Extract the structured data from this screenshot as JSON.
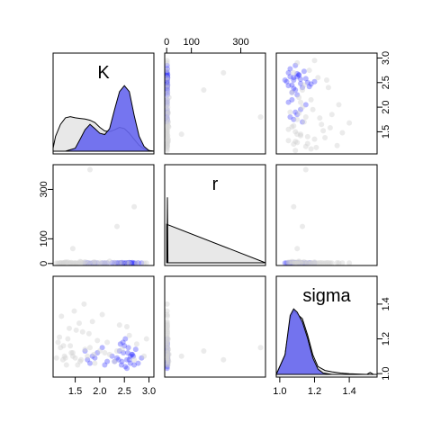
{
  "chart_data": {
    "type": "scatter",
    "title": "",
    "variables": [
      "K",
      "r",
      "sigma"
    ],
    "diagonal_labels": {
      "K": "K",
      "r": "r",
      "sigma": "sigma"
    },
    "ranges": {
      "K": [
        1.05,
        3.1
      ],
      "r": [
        -8,
        400
      ],
      "sigma": [
        0.98,
        1.56
      ]
    },
    "ticks": {
      "K": {
        "values": [
          1.5,
          2.0,
          2.5,
          3.0
        ],
        "labels": [
          "1.5",
          "2.0",
          "2.5",
          "3.0"
        ]
      },
      "r": {
        "values": [
          0,
          100,
          300
        ],
        "labels": [
          "0",
          "100",
          "300"
        ]
      },
      "sigma": {
        "values": [
          1.0,
          1.2,
          1.4
        ],
        "labels": [
          "1.0",
          "1.2",
          "1.4"
        ]
      }
    },
    "colors": {
      "group_prior": "#d3d3d3",
      "group_posterior": "#3333ff",
      "density_fill_prior": "#e8e8e8",
      "density_fill_posterior": "#6666ee"
    },
    "groups": [
      {
        "color": "#d3d3d3",
        "K_density": {
          "x": [
            1.05,
            1.1,
            1.2,
            1.3,
            1.4,
            1.5,
            1.6,
            1.7,
            1.8,
            1.9,
            2.0,
            2.1,
            2.2,
            2.3,
            2.4,
            2.5,
            2.6,
            2.7,
            2.8,
            2.9,
            3.0,
            3.1
          ],
          "y": [
            0.05,
            0.25,
            0.45,
            0.56,
            0.58,
            0.56,
            0.55,
            0.54,
            0.52,
            0.48,
            0.4,
            0.34,
            0.33,
            0.36,
            0.4,
            0.38,
            0.3,
            0.2,
            0.1,
            0.04,
            0.01,
            0.0
          ]
        },
        "r_density": {
          "x": [
            0,
            400
          ],
          "y": [
            1.0,
            0.0
          ]
        },
        "sigma_density": {
          "x": [
            0.98,
            1.03,
            1.06,
            1.08,
            1.1,
            1.13,
            1.16,
            1.19,
            1.22,
            1.26,
            1.3,
            1.35,
            1.4,
            1.45,
            1.5,
            1.52,
            1.54,
            1.56
          ],
          "y": [
            0.0,
            0.3,
            0.85,
            0.97,
            0.92,
            0.85,
            0.6,
            0.3,
            0.12,
            0.06,
            0.04,
            0.02,
            0.01,
            0.005,
            0.0,
            0.03,
            0.0,
            0.0
          ]
        }
      },
      {
        "color": "#3333ff",
        "K_density": {
          "x": [
            1.05,
            1.3,
            1.5,
            1.6,
            1.7,
            1.8,
            1.9,
            2.0,
            2.1,
            2.2,
            2.3,
            2.4,
            2.5,
            2.6,
            2.7,
            2.8,
            2.9,
            3.0,
            3.1
          ],
          "y": [
            0.0,
            0.0,
            0.05,
            0.2,
            0.36,
            0.45,
            0.38,
            0.3,
            0.28,
            0.38,
            0.7,
            1.0,
            1.1,
            1.0,
            0.6,
            0.25,
            0.08,
            0.01,
            0.0
          ]
        },
        "r_density": {
          "x": [
            0,
            1,
            3,
            5,
            8
          ],
          "y": [
            0.0,
            0.0,
            1.7,
            0.0,
            0.0
          ]
        },
        "sigma_density": {
          "x": [
            0.98,
            1.03,
            1.06,
            1.08,
            1.1,
            1.13,
            1.16,
            1.19,
            1.22,
            1.25,
            1.3,
            1.56
          ],
          "y": [
            0.0,
            0.3,
            0.9,
            1.0,
            0.95,
            0.8,
            0.55,
            0.25,
            0.08,
            0.02,
            0.0,
            0.0
          ]
        }
      }
    ],
    "samples": [
      {
        "group": 1,
        "K": 2.55,
        "r": 2,
        "sigma": 1.08
      },
      {
        "group": 1,
        "K": 2.62,
        "r": 3,
        "sigma": 1.1
      },
      {
        "group": 1,
        "K": 2.48,
        "r": 1,
        "sigma": 1.12
      },
      {
        "group": 1,
        "K": 2.7,
        "r": 2,
        "sigma": 1.05
      },
      {
        "group": 1,
        "K": 2.45,
        "r": 4,
        "sigma": 1.07
      },
      {
        "group": 1,
        "K": 2.58,
        "r": 2,
        "sigma": 1.15
      },
      {
        "group": 1,
        "K": 2.35,
        "r": 3,
        "sigma": 1.09
      },
      {
        "group": 1,
        "K": 2.65,
        "r": 1,
        "sigma": 1.11
      },
      {
        "group": 1,
        "K": 2.52,
        "r": 2,
        "sigma": 1.04
      },
      {
        "group": 1,
        "K": 2.78,
        "r": 3,
        "sigma": 1.06
      },
      {
        "group": 1,
        "K": 2.4,
        "r": 2,
        "sigma": 1.13
      },
      {
        "group": 1,
        "K": 2.6,
        "r": 4,
        "sigma": 1.08
      },
      {
        "group": 1,
        "K": 2.5,
        "r": 1,
        "sigma": 1.16
      },
      {
        "group": 1,
        "K": 2.68,
        "r": 2,
        "sigma": 1.1
      },
      {
        "group": 1,
        "K": 2.3,
        "r": 3,
        "sigma": 1.07
      },
      {
        "group": 1,
        "K": 2.85,
        "r": 2,
        "sigma": 1.09
      },
      {
        "group": 1,
        "K": 2.44,
        "r": 2,
        "sigma": 1.05
      },
      {
        "group": 1,
        "K": 2.57,
        "r": 3,
        "sigma": 1.12
      },
      {
        "group": 1,
        "K": 2.73,
        "r": 1,
        "sigma": 1.14
      },
      {
        "group": 1,
        "K": 2.38,
        "r": 2,
        "sigma": 1.08
      },
      {
        "group": 1,
        "K": 2.62,
        "r": 3,
        "sigma": 1.06
      },
      {
        "group": 1,
        "K": 2.47,
        "r": 2,
        "sigma": 1.18
      },
      {
        "group": 1,
        "K": 2.55,
        "r": 2,
        "sigma": 1.03
      },
      {
        "group": 1,
        "K": 2.66,
        "r": 4,
        "sigma": 1.11
      },
      {
        "group": 1,
        "K": 1.85,
        "r": 2,
        "sigma": 1.1
      },
      {
        "group": 1,
        "K": 1.75,
        "r": 3,
        "sigma": 1.08
      },
      {
        "group": 1,
        "K": 1.95,
        "r": 2,
        "sigma": 1.12
      },
      {
        "group": 1,
        "K": 1.8,
        "r": 1,
        "sigma": 1.06
      },
      {
        "group": 1,
        "K": 2.05,
        "r": 2,
        "sigma": 1.15
      },
      {
        "group": 1,
        "K": 1.9,
        "r": 3,
        "sigma": 1.09
      },
      {
        "group": 1,
        "K": 2.15,
        "r": 2,
        "sigma": 1.07
      },
      {
        "group": 1,
        "K": 1.7,
        "r": 2,
        "sigma": 1.13
      },
      {
        "group": 1,
        "K": 2.25,
        "r": 3,
        "sigma": 1.1
      },
      {
        "group": 1,
        "K": 2.1,
        "r": 2,
        "sigma": 1.05
      },
      {
        "group": 1,
        "K": 2.52,
        "r": 2,
        "sigma": 1.2
      },
      {
        "group": 1,
        "K": 2.42,
        "r": 3,
        "sigma": 1.17
      },
      {
        "group": 0,
        "K": 1.3,
        "r": 5,
        "sigma": 1.09
      },
      {
        "group": 0,
        "K": 1.45,
        "r": 2,
        "sigma": 1.12
      },
      {
        "group": 0,
        "K": 1.6,
        "r": 8,
        "sigma": 1.07
      },
      {
        "group": 0,
        "K": 1.2,
        "r": 3,
        "sigma": 1.15
      },
      {
        "group": 0,
        "K": 1.75,
        "r": 1,
        "sigma": 1.1
      },
      {
        "group": 0,
        "K": 1.35,
        "r": 6,
        "sigma": 1.2
      },
      {
        "group": 0,
        "K": 1.55,
        "r": 2,
        "sigma": 1.05
      },
      {
        "group": 0,
        "K": 2.0,
        "r": 4,
        "sigma": 1.13
      },
      {
        "group": 0,
        "K": 1.25,
        "r": 2,
        "sigma": 1.08
      },
      {
        "group": 0,
        "K": 1.65,
        "r": 3,
        "sigma": 1.24
      },
      {
        "group": 0,
        "K": 2.2,
        "r": 9,
        "sigma": 1.11
      },
      {
        "group": 0,
        "K": 1.4,
        "r": 2,
        "sigma": 1.16
      },
      {
        "group": 0,
        "K": 1.9,
        "r": 5,
        "sigma": 1.06
      },
      {
        "group": 0,
        "K": 1.15,
        "r": 1,
        "sigma": 1.18
      },
      {
        "group": 0,
        "K": 2.4,
        "r": 3,
        "sigma": 1.28
      },
      {
        "group": 0,
        "K": 1.5,
        "r": 2,
        "sigma": 1.09
      },
      {
        "group": 0,
        "K": 1.7,
        "r": 7,
        "sigma": 1.14
      },
      {
        "group": 0,
        "K": 2.6,
        "r": 2,
        "sigma": 1.22
      },
      {
        "group": 0,
        "K": 1.28,
        "r": 4,
        "sigma": 1.1
      },
      {
        "group": 0,
        "K": 1.85,
        "r": 2,
        "sigma": 1.3
      },
      {
        "group": 0,
        "K": 2.1,
        "r": 3,
        "sigma": 1.12
      },
      {
        "group": 0,
        "K": 1.38,
        "r": 2,
        "sigma": 1.26
      },
      {
        "group": 0,
        "K": 1.62,
        "r": 6,
        "sigma": 1.08
      },
      {
        "group": 0,
        "K": 2.75,
        "r": 2,
        "sigma": 1.17
      },
      {
        "group": 0,
        "K": 1.22,
        "r": 3,
        "sigma": 1.33
      },
      {
        "group": 0,
        "K": 1.95,
        "r": 2,
        "sigma": 1.19
      },
      {
        "group": 0,
        "K": 2.3,
        "r": 4,
        "sigma": 1.07
      },
      {
        "group": 0,
        "K": 1.48,
        "r": 2,
        "sigma": 1.36
      },
      {
        "group": 0,
        "K": 1.78,
        "r": 3,
        "sigma": 1.23
      },
      {
        "group": 0,
        "K": 2.9,
        "r": 2,
        "sigma": 1.1
      },
      {
        "group": 0,
        "K": 1.32,
        "r": 5,
        "sigma": 1.05
      },
      {
        "group": 0,
        "K": 1.58,
        "r": 2,
        "sigma": 1.29
      },
      {
        "group": 0,
        "K": 2.45,
        "r": 3,
        "sigma": 1.14
      },
      {
        "group": 0,
        "K": 1.18,
        "r": 2,
        "sigma": 1.21
      },
      {
        "group": 0,
        "K": 2.05,
        "r": 2,
        "sigma": 1.34
      },
      {
        "group": 0,
        "K": 1.42,
        "r": 4,
        "sigma": 1.12
      },
      {
        "group": 0,
        "K": 1.68,
        "r": 2,
        "sigma": 1.4
      },
      {
        "group": 0,
        "K": 2.55,
        "r": 3,
        "sigma": 1.27
      },
      {
        "group": 0,
        "K": 1.26,
        "r": 2,
        "sigma": 1.16
      },
      {
        "group": 0,
        "K": 1.88,
        "r": 6,
        "sigma": 1.11
      },
      {
        "group": 0,
        "K": 1.52,
        "r": 2,
        "sigma": 1.25
      },
      {
        "group": 0,
        "K": 2.15,
        "r": 3,
        "sigma": 1.18
      },
      {
        "group": 0,
        "K": 2.95,
        "r": 2,
        "sigma": 1.2
      },
      {
        "group": 0,
        "K": 1.12,
        "r": 2,
        "sigma": 1.09
      },
      {
        "group": 0,
        "K": 2.35,
        "r": 150,
        "sigma": 1.13
      },
      {
        "group": 0,
        "K": 1.8,
        "r": 380,
        "sigma": 1.15
      },
      {
        "group": 0,
        "K": 1.45,
        "r": 60,
        "sigma": 1.1
      },
      {
        "group": 0,
        "K": 2.7,
        "r": 230,
        "sigma": 1.08
      }
    ]
  }
}
